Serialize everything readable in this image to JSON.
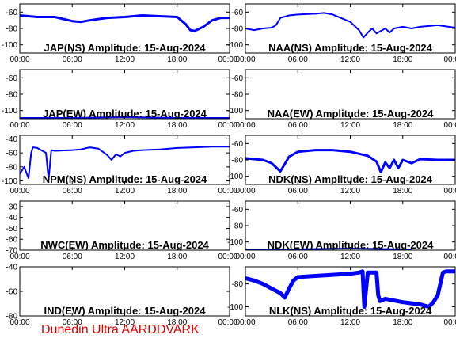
{
  "colors": {
    "signal": "#0000ff",
    "frame": "#000000",
    "credit": "#e00000"
  },
  "credit": "Dunedin Ultra AARDDVARK",
  "chart_data": [
    {
      "type": "line",
      "title": "JAP(NS) Amplitude: 15-Aug-2024",
      "x_ticks": [
        "00:00",
        "06:00",
        "12:00",
        "18:00",
        "00:00"
      ],
      "y_ticks": [
        "-60",
        "-80",
        "-100"
      ],
      "ylim": [
        -110,
        -50
      ],
      "xlim": [
        0,
        24
      ],
      "series": [
        {
          "x": [
            0,
            2,
            4,
            6,
            7,
            8,
            10,
            12,
            14,
            16,
            18,
            19,
            19.5,
            20,
            21,
            22,
            23,
            24
          ],
          "y": [
            -64,
            -66,
            -66,
            -71,
            -72,
            -70,
            -67,
            -66,
            -64,
            -65,
            -66,
            -75,
            -82,
            -83,
            -78,
            -70,
            -67,
            -67
          ],
          "band": 3
        }
      ]
    },
    {
      "type": "line",
      "title": "NAA(NS) Amplitude: 15-Aug-2024",
      "x_ticks": [
        "00:00",
        "06:00",
        "12:00",
        "18:00",
        "00:00"
      ],
      "y_ticks": [
        "-60",
        "-80",
        "-100"
      ],
      "ylim": [
        -110,
        -50
      ],
      "xlim": [
        0,
        24
      ],
      "series": [
        {
          "x": [
            0,
            1,
            2,
            3,
            3.5,
            4,
            5,
            6,
            8,
            9,
            10,
            12,
            13,
            13.5,
            14,
            14.5,
            15,
            16,
            16.5,
            17,
            18,
            19,
            20,
            22,
            24
          ],
          "y": [
            -80,
            -82,
            -80,
            -79,
            -76,
            -67,
            -64,
            -63,
            -62,
            -61,
            -63,
            -72,
            -82,
            -91,
            -85,
            -80,
            -86,
            -80,
            -85,
            -80,
            -78,
            -80,
            -78,
            -76,
            -79
          ],
          "band": 2
        }
      ]
    },
    {
      "type": "line",
      "title": "JAP(EW) Amplitude: 15-Aug-2024",
      "x_ticks": [
        "00:00",
        "06:00",
        "12:00",
        "18:00",
        "00:00"
      ],
      "y_ticks": [
        "-60",
        "-80",
        "-100"
      ],
      "ylim": [
        -110,
        -50
      ],
      "xlim": [
        0,
        24
      ],
      "series": [
        {
          "x": [
            0,
            6,
            12,
            18,
            24
          ],
          "y": [
            -109,
            -109,
            -108,
            -109,
            -109
          ],
          "band": 2
        }
      ]
    },
    {
      "type": "line",
      "title": "NAA(EW) Amplitude: 15-Aug-2024",
      "x_ticks": [
        "00:00",
        "06:00",
        "12:00",
        "18:00",
        "00:00"
      ],
      "y_ticks": [
        "-60",
        "-80",
        "-100"
      ],
      "ylim": [
        -110,
        -50
      ],
      "xlim": [
        0,
        24
      ],
      "series": []
    },
    {
      "type": "line",
      "title": "NPM(NS) Amplitude: 15-Aug-2024",
      "x_ticks": [
        "00:00",
        "06:00",
        "12:00",
        "18:00",
        "00:00"
      ],
      "y_ticks": [
        "-40",
        "-60",
        "-80",
        "-100"
      ],
      "ylim": [
        -105,
        -35
      ],
      "xlim": [
        0,
        24
      ],
      "series": [
        {
          "x": [
            0,
            0.5,
            1,
            1.3,
            1.5,
            2,
            3,
            3.3,
            3.6,
            4,
            6,
            7,
            8,
            9,
            10,
            10.5,
            11,
            11.5,
            12,
            13,
            14,
            16,
            18,
            20,
            22,
            24
          ],
          "y": [
            -90,
            -80,
            -96,
            -60,
            -52,
            -53,
            -60,
            -98,
            -56,
            -57,
            -56,
            -55,
            -52,
            -54,
            -63,
            -70,
            -62,
            -65,
            -60,
            -57,
            -56,
            -55,
            -53,
            -52,
            -51,
            -51
          ],
          "band": 2
        }
      ]
    },
    {
      "type": "line",
      "title": "NDK(NS) Amplitude: 15-Aug-2024",
      "x_ticks": [
        "00:00",
        "06:00",
        "12:00",
        "18:00",
        "00:00"
      ],
      "y_ticks": [
        "-60",
        "-80",
        "-100"
      ],
      "ylim": [
        -110,
        -50
      ],
      "xlim": [
        0,
        24
      ],
      "series": [
        {
          "x": [
            0,
            1,
            2,
            3,
            4,
            5,
            6,
            8,
            10,
            12,
            14,
            15,
            15.5,
            16,
            16.5,
            17,
            17.5,
            18,
            19,
            20,
            22,
            24
          ],
          "y": [
            -78,
            -79,
            -80,
            -84,
            -94,
            -76,
            -70,
            -68,
            -68,
            -70,
            -75,
            -82,
            -95,
            -83,
            -90,
            -80,
            -90,
            -80,
            -84,
            -79,
            -80,
            -80
          ],
          "band": 3
        }
      ]
    },
    {
      "type": "line",
      "title": "NWC(EW) Amplitude: 15-Aug-2024",
      "x_ticks": [
        "00:00",
        "06:00",
        "12:00",
        "18:00",
        "00:00"
      ],
      "y_ticks": [
        "-30",
        "-40",
        "-50",
        "-60",
        "-70"
      ],
      "ylim": [
        -70,
        -25
      ],
      "xlim": [
        0,
        24
      ],
      "series": []
    },
    {
      "type": "line",
      "title": "NDK(EW) Amplitude: 15-Aug-2024",
      "x_ticks": [
        "00:00",
        "06:00",
        "12:00",
        "18:00",
        "00:00"
      ],
      "y_ticks": [
        "-60",
        "-80",
        "-100"
      ],
      "ylim": [
        -110,
        -50
      ],
      "xlim": [
        0,
        24
      ],
      "series": [
        {
          "x": [
            0,
            6,
            12,
            18,
            19
          ],
          "y": [
            -109,
            -109,
            -108,
            -109,
            -109
          ],
          "band": 2
        }
      ]
    },
    {
      "type": "line",
      "title": "IND(EW) Amplitude: 15-Aug-2024",
      "x_ticks": [
        "00:00",
        "06:00",
        "12:00",
        "18:00",
        "00:00"
      ],
      "y_ticks": [
        "-40",
        "-60",
        "-80"
      ],
      "ylim": [
        -80,
        -40
      ],
      "xlim": [
        0,
        24
      ],
      "series": []
    },
    {
      "type": "line",
      "title": "NLK(NS) Amplitude: 15-Aug-2024",
      "x_ticks": [
        "00:00",
        "06:00",
        "12:00",
        "18:00",
        "00:00"
      ],
      "y_ticks": [
        "-80",
        "-100"
      ],
      "ylim": [
        -108,
        -65
      ],
      "xlim": [
        0,
        24
      ],
      "series": [
        {
          "x": [
            0,
            1,
            2,
            3,
            4,
            4.5,
            5,
            5.5,
            6,
            8,
            10,
            12,
            13,
            13.4,
            13.6,
            14,
            15,
            15.2,
            15.4,
            16,
            18,
            19,
            20,
            21,
            21.5,
            22,
            22.3,
            22.6,
            23,
            24
          ],
          "y": [
            -75,
            -77,
            -80,
            -84,
            -88,
            -92,
            -84,
            -77,
            -74,
            -73,
            -72,
            -71,
            -70,
            -69,
            -100,
            -70,
            -70,
            -90,
            -95,
            -93,
            -96,
            -97,
            -98,
            -100,
            -96,
            -90,
            -80,
            -70,
            -69,
            -69
          ],
          "band": 5
        }
      ]
    }
  ]
}
